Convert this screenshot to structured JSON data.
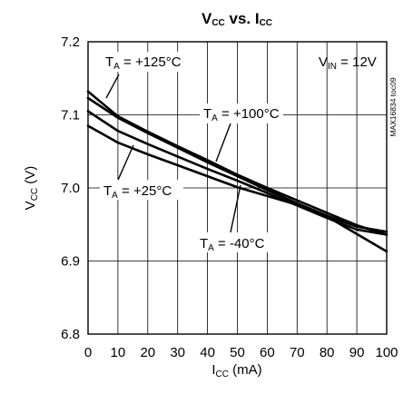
{
  "chart_data": {
    "type": "line",
    "title": {
      "main": "V",
      "sub1": "CC",
      "mid": " vs. I",
      "sub2": "CC"
    },
    "xlabel": {
      "main": "I",
      "sub": "CC",
      "unit": " (mA)"
    },
    "ylabel": {
      "main": "V",
      "sub": "CC",
      "unit": " (V)"
    },
    "xlim": [
      0,
      100
    ],
    "ylim": [
      6.8,
      7.2
    ],
    "x_ticks": [
      "0",
      "10",
      "20",
      "30",
      "40",
      "50",
      "60",
      "70",
      "80",
      "90",
      "100"
    ],
    "y_ticks": [
      "6.8",
      "6.9",
      "7.0",
      "7.1",
      "7.2"
    ],
    "grid": true,
    "condition": {
      "main": "V",
      "sub": "IN",
      "rest": " = 12V"
    },
    "figure_id": "MAX16834 toc09",
    "series": [
      {
        "name": "+125°C",
        "x": [
          0,
          10,
          20,
          30,
          40,
          50,
          60,
          70,
          80,
          90,
          100
        ],
        "y": [
          7.132,
          7.098,
          7.077,
          7.057,
          7.038,
          7.018,
          7.0,
          6.983,
          6.966,
          6.949,
          6.936
        ]
      },
      {
        "name": "+100°C",
        "x": [
          0,
          10,
          20,
          30,
          40,
          50,
          60,
          70,
          80,
          90,
          100
        ],
        "y": [
          7.123,
          7.096,
          7.075,
          7.055,
          7.035,
          7.016,
          6.997,
          6.979,
          6.962,
          6.947,
          6.94
        ]
      },
      {
        "name": "+25°C",
        "x": [
          0,
          10,
          20,
          30,
          40,
          50,
          60,
          70,
          80,
          90,
          100
        ],
        "y": [
          7.105,
          7.078,
          7.06,
          7.043,
          7.026,
          7.01,
          6.993,
          6.976,
          6.959,
          6.943,
          6.936
        ]
      },
      {
        "name": "-40°C",
        "x": [
          0,
          10,
          20,
          30,
          40,
          50,
          60,
          70,
          80,
          90,
          100
        ],
        "y": [
          7.085,
          7.062,
          7.046,
          7.031,
          7.016,
          7.001,
          6.989,
          6.977,
          6.961,
          6.937,
          6.913
        ]
      }
    ],
    "annotations": [
      {
        "series": "+125°C",
        "prefix": "T",
        "sub": "A",
        "text": " = +125°C"
      },
      {
        "series": "+100°C",
        "prefix": "T",
        "sub": "A",
        "text": " = +100°C"
      },
      {
        "series": "+25°C",
        "prefix": "T",
        "sub": "A",
        "text": " = +25°C"
      },
      {
        "series": "-40°C",
        "prefix": "T",
        "sub": "A",
        "text": " = -40°C"
      }
    ]
  }
}
